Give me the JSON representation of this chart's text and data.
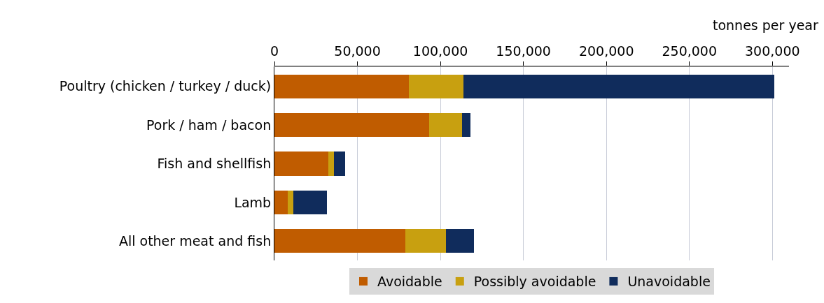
{
  "chart_data": {
    "type": "bar",
    "orientation": "horizontal",
    "stacked": true,
    "xlabel": "tonnes per year",
    "categories": [
      "Poultry (chicken / turkey / duck)",
      "Pork / ham / bacon",
      "Fish and shellfish",
      "Lamb",
      "All other meat and fish"
    ],
    "series": [
      {
        "name": "Avoidable",
        "color": "#c05c00",
        "values": [
          81000,
          93000,
          32600,
          8100,
          78900
        ]
      },
      {
        "name": "Possibly avoidable",
        "color": "#c8a010",
        "values": [
          33000,
          20200,
          3300,
          3400,
          24400
        ]
      },
      {
        "name": "Unavoidable",
        "color": "#102c5c",
        "values": [
          187000,
          5100,
          6800,
          20200,
          16900
        ]
      }
    ],
    "xlim": [
      0,
      310000
    ],
    "xticks": [
      {
        "value": 0,
        "label": "0"
      },
      {
        "value": 50000,
        "label": "50,000"
      },
      {
        "value": 100000,
        "label": "100,000"
      },
      {
        "value": 150000,
        "label": "150,000"
      },
      {
        "value": 200000,
        "label": "200,000"
      },
      {
        "value": 250000,
        "label": "250,000"
      },
      {
        "value": 300000,
        "label": "300,000"
      }
    ],
    "grid": "x",
    "legend": "bottom"
  }
}
